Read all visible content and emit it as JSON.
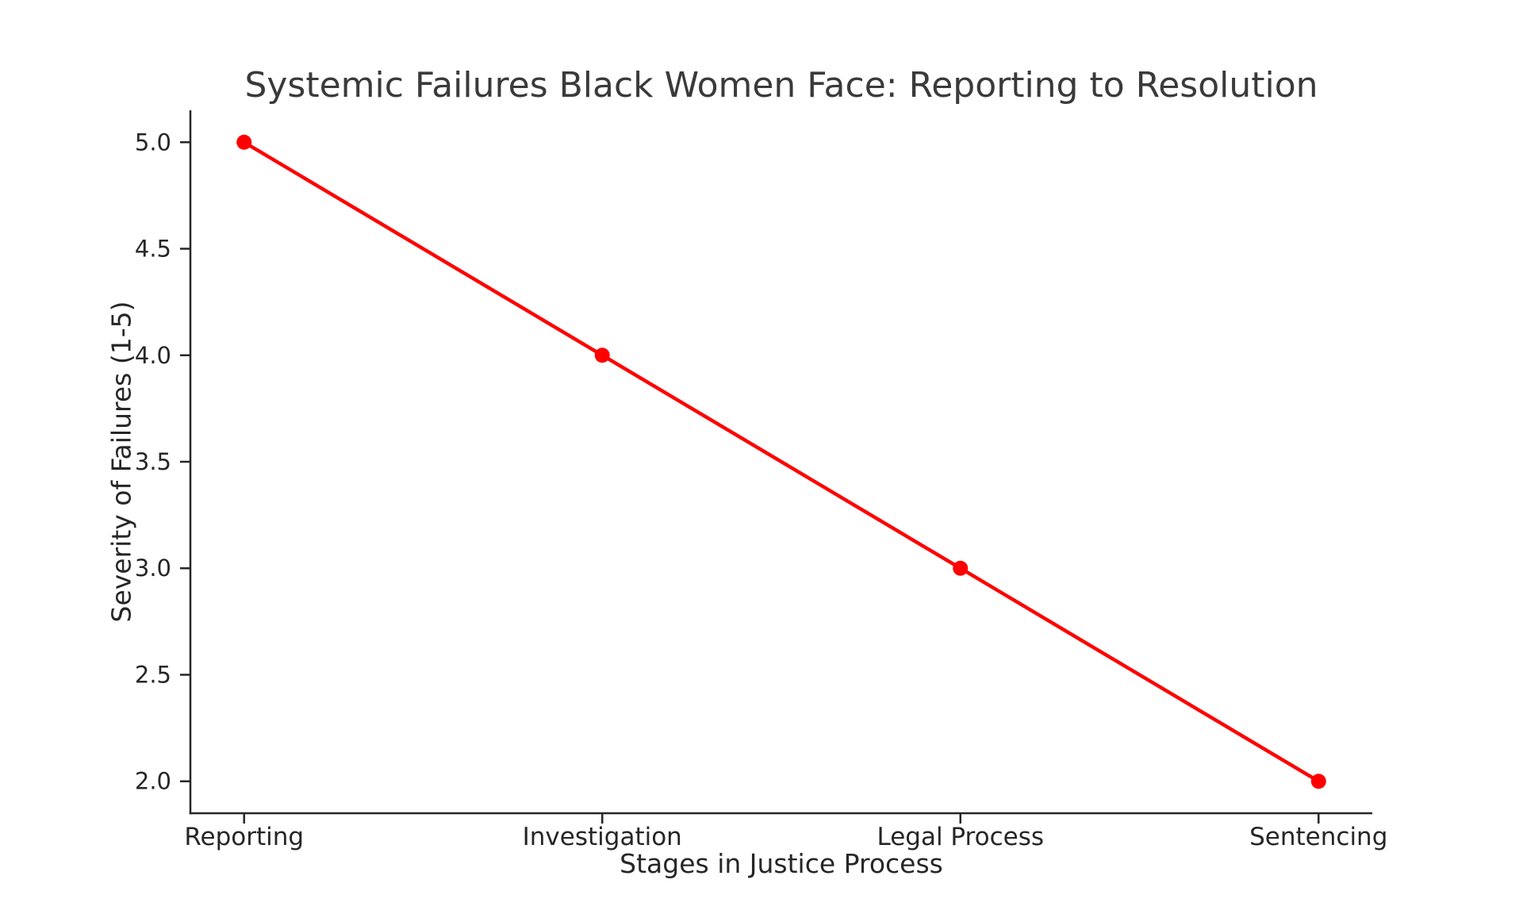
{
  "chart_data": {
    "type": "line",
    "title": "Systemic Failures Black Women Face: Reporting to Resolution",
    "xlabel": "Stages in Justice Process",
    "ylabel": "Severity of Failures (1-5)",
    "categories": [
      "Reporting",
      "Investigation",
      "Legal Process",
      "Sentencing"
    ],
    "series": [
      {
        "name": "Severity of Failures",
        "values": [
          5.0,
          4.0,
          3.0,
          2.0
        ]
      }
    ],
    "yticks": [
      2.0,
      2.5,
      3.0,
      3.5,
      4.0,
      4.5,
      5.0
    ],
    "ytick_labels": [
      "2.0",
      "2.5",
      "3.0",
      "3.5",
      "4.0",
      "4.5",
      "5.0"
    ],
    "ylim": [
      1.85,
      5.15
    ],
    "grid": false,
    "legend": "none",
    "line_color": "#ff0000",
    "marker_color": "#ff0000",
    "marker": "circle",
    "axis_color": "#262626",
    "tick_text_color": "#262626",
    "title_color": "#3a3a3a",
    "background_color": "#ffffff"
  }
}
